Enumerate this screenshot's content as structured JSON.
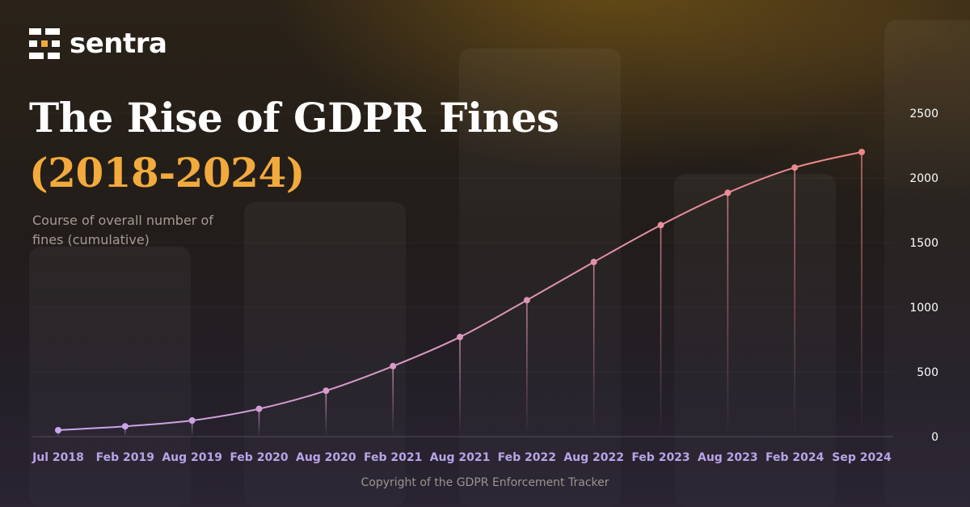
{
  "brand": {
    "name": "sentra"
  },
  "header": {
    "title_line1": "The Rise of GDPR Fines",
    "title_line2": "(2018-2024)",
    "subtitle": "Course of overall number of fines (cumulative)"
  },
  "footer": {
    "copyright": "Copyright of the GDPR Enforcement Tracker"
  },
  "colors": {
    "title": "#ffffff",
    "accent": "#f2aa3c",
    "line_start": "#c9a6f2",
    "line_end": "#ee8784",
    "x_tick": "#b9a3e8",
    "y_tick": "#ffffff"
  },
  "chart_data": {
    "type": "line",
    "title": "The Rise of GDPR Fines (2018-2024)",
    "ylabel": "Course of overall number of fines (cumulative)",
    "xlabel": "",
    "ylim": [
      0,
      2500
    ],
    "y_ticks": [
      0,
      500,
      1000,
      1500,
      2000,
      2500
    ],
    "y_axis_side": "right",
    "categories": [
      "Jul 2018",
      "Feb 2019",
      "Aug 2019",
      "Feb 2020",
      "Aug 2020",
      "Feb 2021",
      "Aug 2021",
      "Feb 2022",
      "Aug 2022",
      "Feb 2023",
      "Aug 2023",
      "Feb 2024",
      "Sep 2024"
    ],
    "series": [
      {
        "name": "Overall number of fines",
        "values": [
          50,
          80,
          125,
          215,
          355,
          545,
          770,
          1055,
          1350,
          1635,
          1885,
          2080,
          2200
        ]
      }
    ],
    "grid": false
  }
}
